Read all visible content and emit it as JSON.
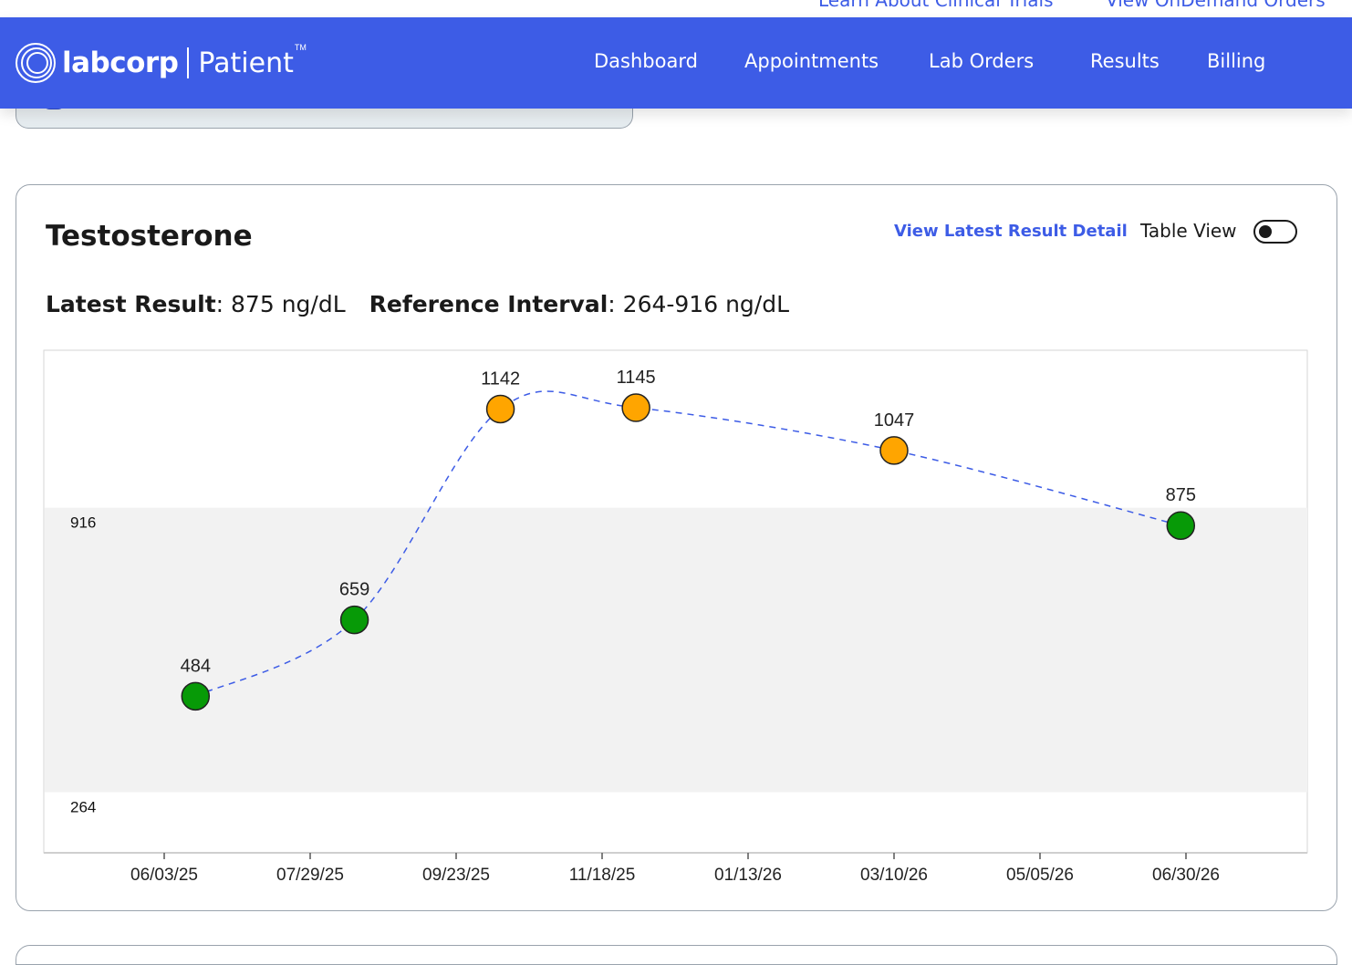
{
  "top_links": [
    "Learn About Clinical Trials",
    "View OnDemand Orders"
  ],
  "header": {
    "logo_text": "labcorp",
    "logo_sub": "Patient",
    "logo_tm": "TM",
    "nav": [
      "Dashboard",
      "Appointments",
      "Lab Orders",
      "Results",
      "Billing"
    ]
  },
  "card": {
    "title": "Testosterone",
    "detail_link": "View Latest Result Detail",
    "table_view_label": "Table View",
    "table_view_on": false,
    "latest_label": "Latest Result",
    "latest_value": ": 875 ng/dL",
    "reference_label": "Reference Interval",
    "reference_value": ": 264-916 ng/dL"
  },
  "colors": {
    "brand": "#3d5ce6",
    "in_range": "#079a07",
    "out_of_range": "#ffa500",
    "band": "#f2f2f2",
    "trend_line": "#3d5ce6"
  },
  "chart_data": {
    "type": "scatter",
    "title": "",
    "xlabel": "",
    "ylabel": "",
    "x_ticks": [
      "06/03/25",
      "07/29/25",
      "09/23/25",
      "11/18/25",
      "01/13/26",
      "03/10/26",
      "05/05/26",
      "06/30/26"
    ],
    "reference_band": {
      "low": 264,
      "high": 916
    },
    "y_tick_labels": [
      "916",
      "264"
    ],
    "series": [
      {
        "points": [
          {
            "x": "06/15/25",
            "y": 484,
            "status": "normal"
          },
          {
            "x": "08/15/25",
            "y": 659,
            "status": "normal"
          },
          {
            "x": "10/10/25",
            "y": 1142,
            "status": "high"
          },
          {
            "x": "12/01/25",
            "y": 1145,
            "status": "high"
          },
          {
            "x": "03/10/26",
            "y": 1047,
            "status": "high"
          },
          {
            "x": "06/28/26",
            "y": 875,
            "status": "normal"
          }
        ]
      }
    ],
    "trend_line": "dashed smoothed",
    "legend": "none"
  }
}
